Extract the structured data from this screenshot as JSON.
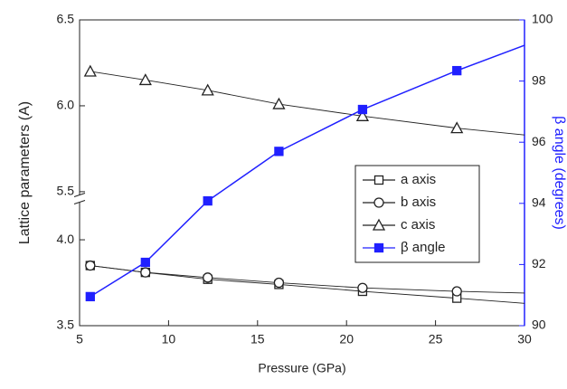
{
  "chart_data": {
    "type": "line",
    "x_label": "Pressure (GPa)",
    "y_label": "Lattice parameters (A)",
    "y2_label": "β angle (degrees)",
    "x": [
      5.6,
      8.7,
      12.2,
      16.2,
      20.9,
      26.2
    ],
    "xlim": [
      5,
      30
    ],
    "xticks": [
      5,
      10,
      15,
      20,
      25,
      30
    ],
    "ylim": [
      3.5,
      6.5
    ],
    "y_break": [
      4.24,
      5.46
    ],
    "yticks": [
      3.5,
      {
        "value": 4,
        "label": "4.0"
      },
      5.5,
      {
        "value": 6,
        "label": "6.0"
      },
      6.5
    ],
    "y2lim": [
      90,
      100
    ],
    "y2ticks": [
      90,
      92,
      94,
      96,
      98,
      100
    ],
    "y2_color": "#2020ff",
    "series": [
      {
        "name": "a axis",
        "color": "#222222",
        "marker": "square-open",
        "values": [
          3.85,
          3.81,
          3.77,
          3.74,
          3.7,
          3.66
        ],
        "line_to": [
          30,
          3.63
        ]
      },
      {
        "name": "b axis",
        "color": "#222222",
        "marker": "circle-open",
        "values": [
          3.85,
          3.81,
          3.78,
          3.75,
          3.72,
          3.7
        ],
        "line_to": [
          30,
          3.69
        ]
      },
      {
        "name": "c axis",
        "color": "#222222",
        "marker": "triangle-open",
        "values": [
          6.2,
          6.15,
          6.09,
          6.01,
          5.94,
          5.87
        ],
        "line_to": [
          30,
          5.83
        ]
      },
      {
        "name": "β angle",
        "color": "#2020ff",
        "marker": "square",
        "axis": "y2",
        "values": [
          90.95,
          92.07,
          94.08,
          95.7,
          97.07,
          98.34
        ],
        "line_to": [
          30,
          99.17
        ]
      }
    ],
    "legend": "lower-right"
  }
}
